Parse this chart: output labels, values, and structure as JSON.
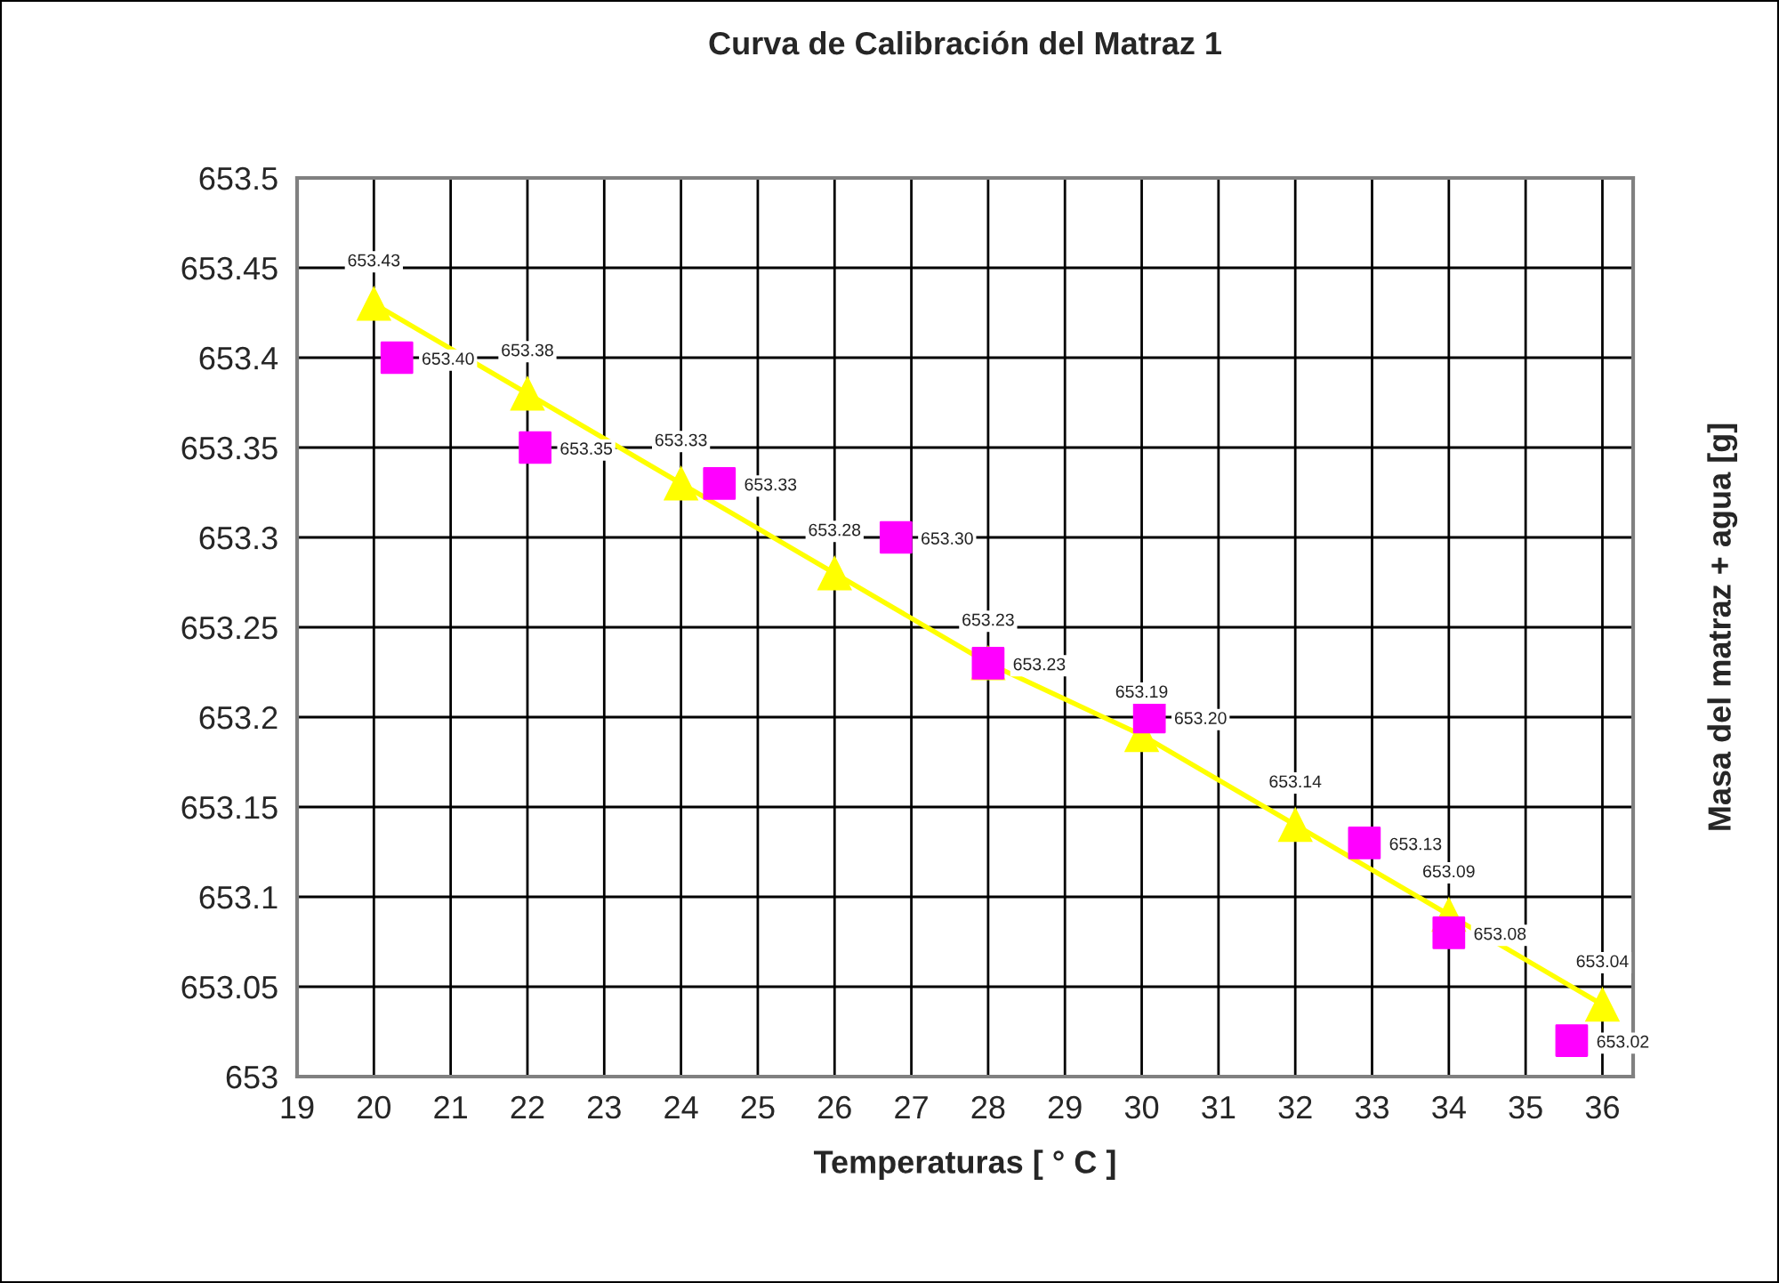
{
  "chart_data": {
    "type": "line",
    "title": "Curva de Calibración del Matraz 1",
    "xlabel": "Temperaturas [ ° C ]",
    "ylabel": "Masa del matraz + agua [g]",
    "xlim": [
      19,
      36.4
    ],
    "xticks": [
      19,
      20,
      21,
      22,
      23,
      24,
      25,
      26,
      27,
      28,
      29,
      30,
      31,
      32,
      33,
      34,
      35,
      36
    ],
    "ylim": [
      653,
      653.5
    ],
    "yticks": [
      653,
      653.05,
      653.1,
      653.15,
      653.2,
      653.25,
      653.3,
      653.35,
      653.4,
      653.45,
      653.5
    ],
    "grid": true,
    "series": [
      {
        "type": "line",
        "color": "#ffff00",
        "marker": "triangle",
        "line_style": "solid",
        "x": [
          20,
          22,
          24,
          26,
          28,
          30,
          32,
          34,
          36
        ],
        "values": [
          653.43,
          653.38,
          653.33,
          653.28,
          653.23,
          653.19,
          653.14,
          653.09,
          653.04
        ],
        "value_labels": [
          "653.43",
          "653.38",
          "653.33",
          "653.28",
          "653.23",
          "653.19",
          "653.14",
          "653.09",
          "653.04"
        ]
      },
      {
        "type": "scatter",
        "color": "#ff00ff",
        "marker": "square",
        "x": [
          20.3,
          22.1,
          24.5,
          26.8,
          28.0,
          30.1,
          32.9,
          34.0,
          35.6
        ],
        "values": [
          653.4,
          653.35,
          653.33,
          653.3,
          653.23,
          653.2,
          653.13,
          653.08,
          653.02
        ],
        "value_labels": [
          "653.40",
          "653.35",
          "653.33",
          "653.30",
          "653.23",
          "653.20",
          "653.13",
          "653.08",
          "653.02"
        ]
      }
    ]
  }
}
